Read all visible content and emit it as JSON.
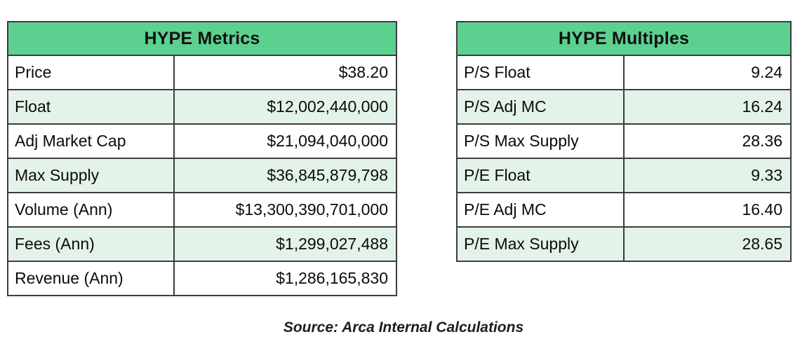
{
  "colors": {
    "header_green": "#5CD08F",
    "row_alt_green": "#E4F3EA",
    "row_white": "#FFFFFF",
    "border": "#3C3C3C",
    "text": "#0B0B0B"
  },
  "tables": [
    {
      "title": "HYPE Metrics",
      "rows": [
        {
          "label": "Price",
          "value": "$38.20"
        },
        {
          "label": "Float",
          "value": "$12,002,440,000"
        },
        {
          "label": "Adj Market Cap",
          "value": "$21,094,040,000"
        },
        {
          "label": "Max Supply",
          "value": "$36,845,879,798"
        },
        {
          "label": "Volume (Ann)",
          "value": "$13,300,390,701,000"
        },
        {
          "label": "Fees (Ann)",
          "value": "$1,299,027,488"
        },
        {
          "label": "Revenue (Ann)",
          "value": "$1,286,165,830"
        }
      ]
    },
    {
      "title": "HYPE Multiples",
      "rows": [
        {
          "label": "P/S Float",
          "value": "9.24"
        },
        {
          "label": "P/S Adj MC",
          "value": "16.24"
        },
        {
          "label": "P/S Max Supply",
          "value": "28.36"
        },
        {
          "label": "P/E Float",
          "value": "9.33"
        },
        {
          "label": "P/E Adj MC",
          "value": "16.40"
        },
        {
          "label": "P/E Max Supply",
          "value": "28.65"
        }
      ]
    }
  ],
  "caption": "Source: Arca Internal Calculations",
  "chart_data": [
    {
      "type": "table",
      "title": "HYPE Metrics",
      "rows": [
        [
          "Price",
          "$38.20"
        ],
        [
          "Float",
          "$12,002,440,000"
        ],
        [
          "Adj Market Cap",
          "$21,094,040,000"
        ],
        [
          "Max Supply",
          "$36,845,879,798"
        ],
        [
          "Volume (Ann)",
          "$13,300,390,701,000"
        ],
        [
          "Fees (Ann)",
          "$1,299,027,488"
        ],
        [
          "Revenue (Ann)",
          "$1,286,165,830"
        ]
      ],
      "layout": "single merged green title header, label column left-aligned, value column right-aligned, alternating white/light-green rows"
    },
    {
      "type": "table",
      "title": "HYPE Multiples",
      "rows": [
        [
          "P/S Float",
          "9.24"
        ],
        [
          "P/S Adj MC",
          "16.24"
        ],
        [
          "P/S Max Supply",
          "28.36"
        ],
        [
          "P/E Float",
          "9.33"
        ],
        [
          "P/E Adj MC",
          "16.40"
        ],
        [
          "P/E Max Supply",
          "28.65"
        ]
      ],
      "layout": "single merged green title header, label column left-aligned, value column right-aligned, alternating white/light-green rows"
    }
  ]
}
